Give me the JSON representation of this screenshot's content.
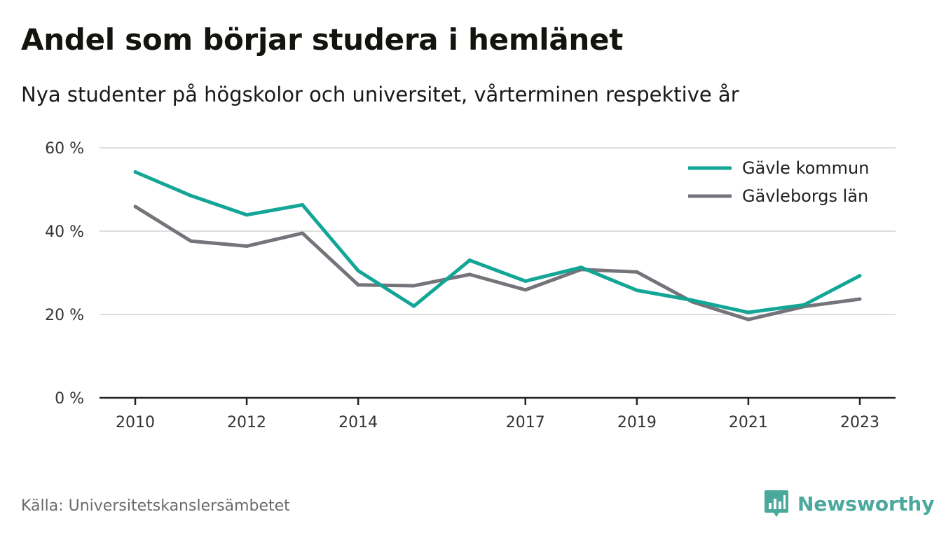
{
  "title": "Andel som börjar studera i hemlänet",
  "subtitle": "Nya studenter på högskolor och universitet, vårterminen respektive år",
  "source": "Källa: Universitetskanslersämbetet",
  "brand": {
    "name": "Newsworthy",
    "icon": "newsworthy-logo-icon",
    "color": "#4aa89c"
  },
  "chart_data": {
    "type": "line",
    "x": [
      2010,
      2011,
      2012,
      2013,
      2014,
      2015,
      2016,
      2017,
      2018,
      2019,
      2020,
      2021,
      2022,
      2023
    ],
    "x_tick_labels": [
      "2010",
      "2012",
      "2014",
      "2017",
      "2019",
      "2021",
      "2023"
    ],
    "x_tick_values": [
      2010,
      2012,
      2014,
      2017,
      2019,
      2021,
      2023
    ],
    "y_tick_values": [
      0,
      20,
      40,
      60
    ],
    "y_tick_labels": [
      "0 %",
      "20 %",
      "40 %",
      "60 %"
    ],
    "ylim": [
      0,
      60
    ],
    "grid": true,
    "legend_position": "top-right",
    "series": [
      {
        "name": "Gävle kommun",
        "color": "#13a596",
        "values": [
          54.2,
          48.5,
          43.9,
          46.3,
          30.5,
          22.0,
          33.0,
          28.0,
          31.3,
          25.8,
          23.4,
          20.5,
          22.3,
          29.3
        ]
      },
      {
        "name": "Gävleborgs län",
        "color": "#75747a",
        "values": [
          45.9,
          37.6,
          36.4,
          39.5,
          27.1,
          26.9,
          29.6,
          25.9,
          30.8,
          30.2,
          23.0,
          18.8,
          21.9,
          23.7
        ]
      }
    ]
  }
}
